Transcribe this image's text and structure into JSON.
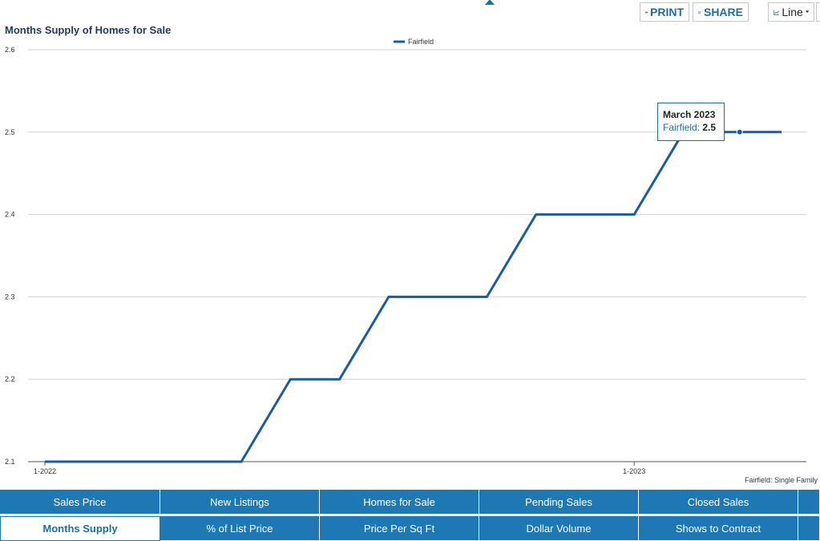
{
  "toolbar": {
    "print_label": "PRINT",
    "share_label": "SHARE",
    "chart_type_label": "Line",
    "icons": [
      "printer-icon",
      "share-icon",
      "line-chart-icon",
      "caret-down-icon"
    ]
  },
  "chart_data": {
    "type": "line",
    "title": "Months Supply of Homes for Sale",
    "ylim": [
      2.1,
      2.6
    ],
    "yticks": [
      "2.1",
      "2.2",
      "2.3",
      "2.4",
      "2.5",
      "2.6"
    ],
    "xtick_labels": [
      "1-2022",
      "1-2023"
    ],
    "grid": true,
    "legend_position": "top-center",
    "x": [
      "2022-01",
      "2022-02",
      "2022-03",
      "2022-04",
      "2022-05",
      "2022-06",
      "2022-07",
      "2022-08",
      "2022-09",
      "2022-10",
      "2022-11",
      "2022-12",
      "2023-01",
      "2023-02",
      "2023-03",
      "2023-04"
    ],
    "series": [
      {
        "name": "Fairfield",
        "color": "#1a5c9c",
        "values": [
          2.1,
          2.1,
          2.1,
          2.1,
          2.1,
          2.2,
          2.2,
          2.3,
          2.3,
          2.3,
          2.4,
          2.4,
          2.4,
          2.5,
          2.5,
          2.5
        ]
      }
    ],
    "tooltip": {
      "title": "March 2023",
      "series": "Fairfield",
      "value": "2.5",
      "point_index": 14
    },
    "footnote": "Fairfield: Single Family"
  },
  "tabs": {
    "row1": [
      "Sales Price",
      "New Listings",
      "Homes for Sale",
      "Pending Sales",
      "Closed Sales"
    ],
    "row2": [
      "Months Supply",
      "% of List Price",
      "Price Per Sq Ft",
      "Dollar Volume",
      "Shows to Contract"
    ],
    "active": "Months Supply"
  }
}
